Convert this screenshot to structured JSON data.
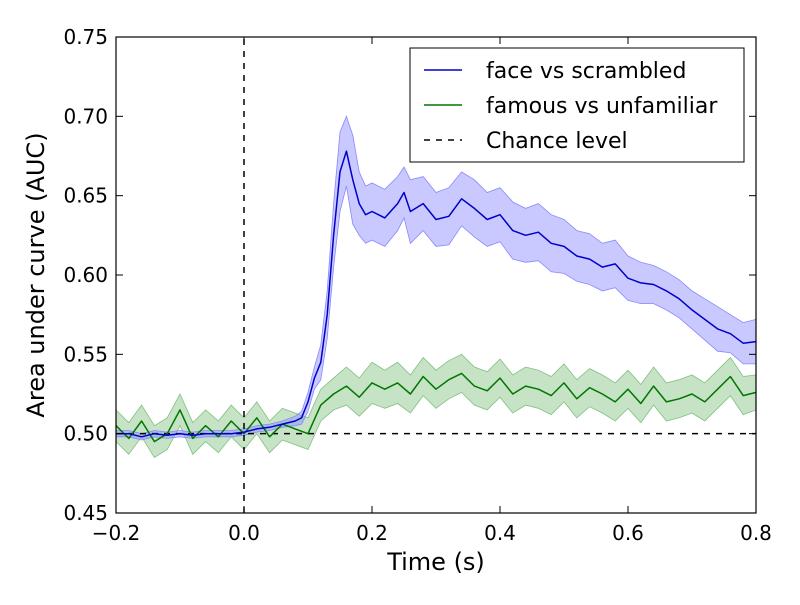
{
  "chart_data": {
    "type": "line",
    "title": "",
    "xlabel": "Time (s)",
    "ylabel": "Area under curve (AUC)",
    "xlim": [
      -0.2,
      0.8
    ],
    "ylim": [
      0.45,
      0.75
    ],
    "x_ticks": [
      -0.2,
      0.0,
      0.2,
      0.4,
      0.6,
      0.8
    ],
    "x_tick_labels": [
      "−0.2",
      "0.0",
      "0.2",
      "0.4",
      "0.6",
      "0.8"
    ],
    "y_ticks": [
      0.45,
      0.5,
      0.55,
      0.6,
      0.65,
      0.7,
      0.75
    ],
    "y_tick_labels": [
      "0.45",
      "0.50",
      "0.55",
      "0.60",
      "0.65",
      "0.70",
      "0.75"
    ],
    "grid": false,
    "legend_position": "top-right",
    "reference_lines": [
      {
        "name": "Chance level",
        "orientation": "horizontal",
        "value": 0.5,
        "style": "dashed",
        "color": "#000000"
      },
      {
        "orientation": "vertical",
        "value": 0.0,
        "style": "dashed",
        "color": "#000000"
      }
    ],
    "series": [
      {
        "name": "face vs scrambled",
        "color": "#0000cc",
        "band_color": "#8888ff",
        "x": [
          -0.2,
          -0.18,
          -0.16,
          -0.14,
          -0.12,
          -0.1,
          -0.08,
          -0.06,
          -0.04,
          -0.02,
          0.0,
          0.02,
          0.04,
          0.06,
          0.08,
          0.09,
          0.1,
          0.11,
          0.12,
          0.13,
          0.14,
          0.15,
          0.16,
          0.17,
          0.18,
          0.19,
          0.2,
          0.22,
          0.24,
          0.25,
          0.26,
          0.28,
          0.3,
          0.32,
          0.34,
          0.36,
          0.38,
          0.4,
          0.42,
          0.44,
          0.46,
          0.48,
          0.5,
          0.52,
          0.54,
          0.56,
          0.58,
          0.6,
          0.62,
          0.64,
          0.66,
          0.68,
          0.7,
          0.72,
          0.74,
          0.76,
          0.78,
          0.8
        ],
        "y": [
          0.5,
          0.5,
          0.498,
          0.5,
          0.499,
          0.5,
          0.499,
          0.5,
          0.5,
          0.5,
          0.501,
          0.503,
          0.504,
          0.506,
          0.508,
          0.51,
          0.52,
          0.535,
          0.545,
          0.575,
          0.625,
          0.665,
          0.678,
          0.66,
          0.645,
          0.638,
          0.64,
          0.636,
          0.645,
          0.652,
          0.64,
          0.645,
          0.635,
          0.637,
          0.648,
          0.642,
          0.635,
          0.638,
          0.628,
          0.625,
          0.627,
          0.62,
          0.618,
          0.612,
          0.61,
          0.605,
          0.607,
          0.598,
          0.595,
          0.594,
          0.59,
          0.585,
          0.578,
          0.572,
          0.566,
          0.563,
          0.557,
          0.558
        ],
        "upper": [
          0.502,
          0.502,
          0.5,
          0.502,
          0.501,
          0.502,
          0.501,
          0.502,
          0.502,
          0.502,
          0.503,
          0.505,
          0.506,
          0.508,
          0.511,
          0.514,
          0.526,
          0.542,
          0.556,
          0.59,
          0.645,
          0.69,
          0.7,
          0.688,
          0.665,
          0.656,
          0.658,
          0.654,
          0.662,
          0.668,
          0.66,
          0.662,
          0.652,
          0.655,
          0.665,
          0.66,
          0.652,
          0.655,
          0.646,
          0.642,
          0.645,
          0.638,
          0.635,
          0.628,
          0.626,
          0.62,
          0.622,
          0.612,
          0.608,
          0.606,
          0.602,
          0.597,
          0.59,
          0.585,
          0.58,
          0.575,
          0.57,
          0.572
        ],
        "lower": [
          0.498,
          0.498,
          0.496,
          0.498,
          0.497,
          0.498,
          0.497,
          0.498,
          0.498,
          0.498,
          0.499,
          0.501,
          0.502,
          0.504,
          0.505,
          0.506,
          0.514,
          0.528,
          0.534,
          0.56,
          0.605,
          0.64,
          0.656,
          0.632,
          0.625,
          0.62,
          0.622,
          0.618,
          0.628,
          0.636,
          0.62,
          0.628,
          0.618,
          0.619,
          0.631,
          0.624,
          0.618,
          0.621,
          0.61,
          0.608,
          0.609,
          0.602,
          0.601,
          0.596,
          0.594,
          0.59,
          0.592,
          0.584,
          0.582,
          0.582,
          0.578,
          0.573,
          0.566,
          0.559,
          0.552,
          0.551,
          0.544,
          0.544
        ]
      },
      {
        "name": "famous vs unfamiliar",
        "color": "#007700",
        "band_color": "#80c080",
        "x": [
          -0.2,
          -0.18,
          -0.16,
          -0.14,
          -0.12,
          -0.1,
          -0.08,
          -0.06,
          -0.04,
          -0.02,
          0.0,
          0.02,
          0.04,
          0.06,
          0.08,
          0.1,
          0.12,
          0.14,
          0.16,
          0.18,
          0.2,
          0.22,
          0.24,
          0.26,
          0.28,
          0.3,
          0.32,
          0.34,
          0.36,
          0.38,
          0.4,
          0.42,
          0.44,
          0.46,
          0.48,
          0.5,
          0.52,
          0.54,
          0.56,
          0.58,
          0.6,
          0.62,
          0.64,
          0.66,
          0.68,
          0.7,
          0.72,
          0.74,
          0.76,
          0.78,
          0.8
        ],
        "y": [
          0.505,
          0.497,
          0.508,
          0.495,
          0.5,
          0.515,
          0.497,
          0.505,
          0.498,
          0.508,
          0.5,
          0.51,
          0.498,
          0.506,
          0.503,
          0.5,
          0.518,
          0.525,
          0.53,
          0.523,
          0.532,
          0.528,
          0.532,
          0.525,
          0.536,
          0.528,
          0.534,
          0.538,
          0.53,
          0.527,
          0.535,
          0.525,
          0.53,
          0.528,
          0.524,
          0.532,
          0.522,
          0.529,
          0.525,
          0.52,
          0.528,
          0.519,
          0.53,
          0.52,
          0.522,
          0.525,
          0.52,
          0.528,
          0.536,
          0.524,
          0.526
        ],
        "upper": [
          0.515,
          0.507,
          0.518,
          0.505,
          0.51,
          0.525,
          0.507,
          0.515,
          0.508,
          0.518,
          0.51,
          0.52,
          0.508,
          0.516,
          0.513,
          0.51,
          0.528,
          0.535,
          0.542,
          0.535,
          0.545,
          0.54,
          0.545,
          0.537,
          0.548,
          0.54,
          0.546,
          0.55,
          0.542,
          0.539,
          0.547,
          0.537,
          0.542,
          0.54,
          0.536,
          0.544,
          0.534,
          0.541,
          0.537,
          0.532,
          0.54,
          0.531,
          0.542,
          0.532,
          0.534,
          0.537,
          0.532,
          0.54,
          0.548,
          0.536,
          0.537
        ],
        "lower": [
          0.495,
          0.487,
          0.498,
          0.485,
          0.49,
          0.505,
          0.487,
          0.495,
          0.488,
          0.498,
          0.49,
          0.5,
          0.488,
          0.496,
          0.493,
          0.49,
          0.508,
          0.515,
          0.518,
          0.511,
          0.519,
          0.516,
          0.519,
          0.513,
          0.524,
          0.516,
          0.522,
          0.526,
          0.518,
          0.515,
          0.523,
          0.513,
          0.518,
          0.516,
          0.512,
          0.52,
          0.51,
          0.517,
          0.513,
          0.508,
          0.516,
          0.507,
          0.518,
          0.508,
          0.51,
          0.513,
          0.508,
          0.516,
          0.524,
          0.512,
          0.515
        ]
      }
    ]
  }
}
